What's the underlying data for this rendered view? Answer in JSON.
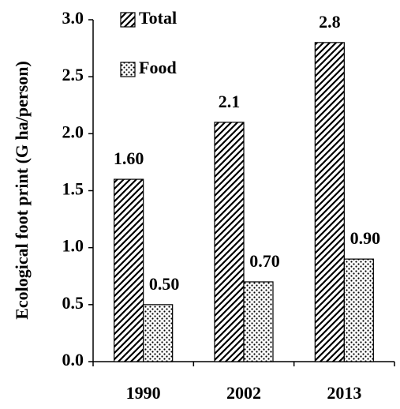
{
  "chart_data": {
    "type": "bar",
    "ylabel": "Ecological foot print (G ha/person)",
    "categories": [
      "1990",
      "2002",
      "2013"
    ],
    "series": [
      {
        "name": "Total",
        "color": "#000000",
        "pattern": "hatch",
        "values": [
          1.6,
          2.1,
          2.8
        ],
        "value_labels": [
          "1.60",
          "2.1",
          "2.8"
        ]
      },
      {
        "name": "Food",
        "color": "#000000",
        "pattern": "dots",
        "values": [
          0.5,
          0.7,
          0.9
        ],
        "value_labels": [
          "0.50",
          "0.70",
          "0.90"
        ]
      }
    ],
    "ylim": [
      0,
      3
    ],
    "yticks": [
      {
        "value": 0,
        "label": "0.0"
      },
      0.5,
      {
        "value": 1,
        "label": "1.0"
      },
      1.5,
      {
        "value": 2,
        "label": "2.0"
      },
      2.5,
      {
        "value": 3,
        "label": "3.0"
      }
    ],
    "legend": "upper left"
  }
}
